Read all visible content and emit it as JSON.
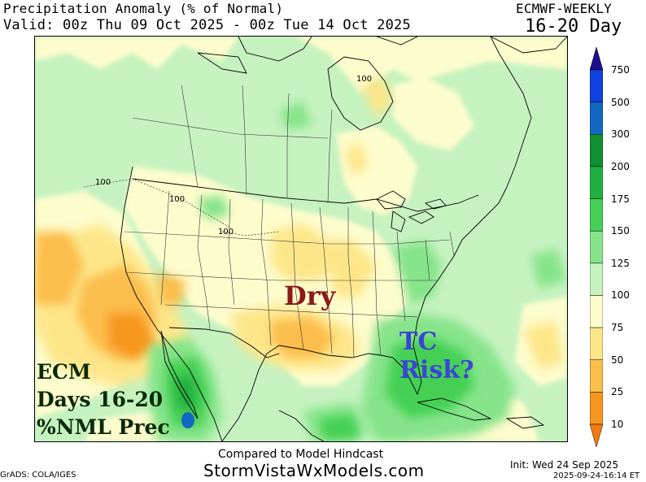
{
  "header": {
    "title": "Precipitation Anomaly (% of Normal)",
    "valid": "Valid: 00z Thu 09 Oct 2025 - 00z Tue 14 Oct 2025",
    "model": "ECMWF-WEEKLY",
    "range": "16-20 Day"
  },
  "map": {
    "contour_labels": [
      "100",
      "100",
      "100",
      "100"
    ],
    "annotations": {
      "dry": "Dry",
      "tc_line1": "TC",
      "tc_line2": "Risk?",
      "ecm_line1": "ECM",
      "ecm_line2": "Days 16-20",
      "ecm_line3": "%NML Prec"
    },
    "colors": {
      "dry_text": "#8b1a1a",
      "tc_text": "#3c44d8",
      "ecm_text": "#0a2a0a"
    }
  },
  "colorbar": {
    "labels": [
      "750",
      "500",
      "300",
      "200",
      "175",
      "150",
      "125",
      "100",
      "75",
      "50",
      "25",
      "10"
    ],
    "colors": [
      "#1a0f8c",
      "#1040e0",
      "#1268c0",
      "#109030",
      "#20b040",
      "#45d055",
      "#86e48a",
      "#c6f2c0",
      "#fdfccd",
      "#fde68a",
      "#fbbd4c",
      "#f7961f",
      "#f47a12"
    ]
  },
  "footer": {
    "compared": "Compared to Model Hindcast",
    "website": "StormVistaWxModels.com",
    "grads": "GrADS: COLA/IGES",
    "init": "Init: Wed 24 Sep 2025",
    "timestamp": "2025-09-24-16:14 ET"
  }
}
